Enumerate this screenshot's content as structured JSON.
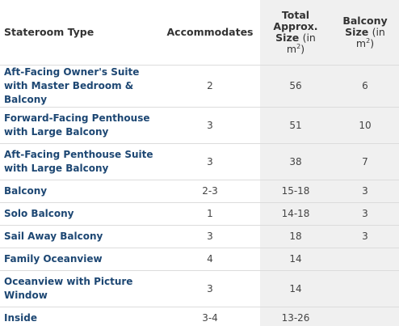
{
  "headers": {
    "type": "Stateroom Type",
    "accommodates": "Accommodates",
    "size_line1": "Total",
    "size_line2": "Approx.",
    "size_line3": "Size",
    "size_unit": "(in",
    "size_m": "m",
    "size_sup": "2",
    "size_close": ")",
    "balcony_line1": "Balcony",
    "balcony_line2": "Size",
    "balcony_unit": "(in",
    "balcony_m": "m",
    "balcony_sup": "2",
    "balcony_close": ")"
  },
  "rows": [
    {
      "name": "Aft-Facing Owner's Suite with Master Bedroom & Balcony",
      "accommodates": "2",
      "size": "56",
      "balcony": "6"
    },
    {
      "name": "Forward-Facing Penthouse with Large Balcony",
      "accommodates": "3",
      "size": "51",
      "balcony": "10"
    },
    {
      "name": "Aft-Facing Penthouse Suite with Large Balcony",
      "accommodates": "3",
      "size": "38",
      "balcony": "7"
    },
    {
      "name": "Balcony",
      "accommodates": "2-3",
      "size": "15-18",
      "balcony": "3"
    },
    {
      "name": "Solo Balcony",
      "accommodates": "1",
      "size": "14-18",
      "balcony": "3"
    },
    {
      "name": "Sail Away Balcony",
      "accommodates": "3",
      "size": "18",
      "balcony": "3"
    },
    {
      "name": "Family Oceanview",
      "accommodates": "4",
      "size": "14",
      "balcony": ""
    },
    {
      "name": "Oceanview with Picture Window",
      "accommodates": "3",
      "size": "14",
      "balcony": ""
    },
    {
      "name": "Inside",
      "accommodates": "3-4",
      "size": "13-26",
      "balcony": ""
    }
  ]
}
